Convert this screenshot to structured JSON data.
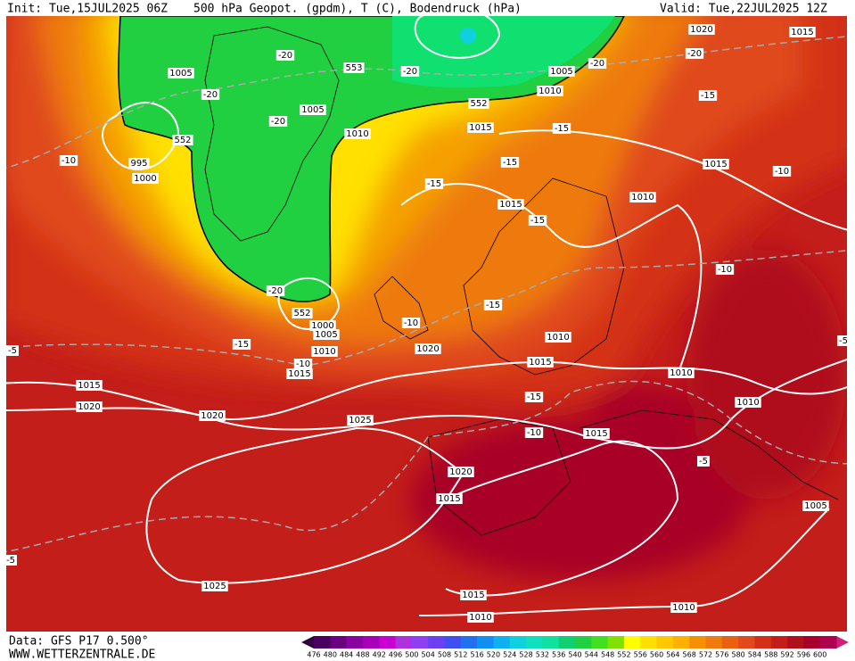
{
  "header": {
    "init": "Init: Tue,15JUL2025 06Z",
    "title": "500 hPa Geopot. (gpdm), T (C), Bodendruck (hPa)",
    "valid": "Valid: Tue,22JUL2025 12Z"
  },
  "footer": {
    "data": "Data: GFS P17 0.500°",
    "site": "WWW.WETTERZENTRALE.DE"
  },
  "colorbar": {
    "ticks": [
      476,
      480,
      484,
      488,
      492,
      496,
      500,
      504,
      508,
      512,
      516,
      520,
      524,
      528,
      532,
      536,
      540,
      544,
      548,
      552,
      556,
      560,
      564,
      568,
      572,
      576,
      580,
      584,
      588,
      592,
      596,
      600
    ],
    "colors": [
      "#4a0060",
      "#6a0080",
      "#8a00a0",
      "#a800b8",
      "#c800d0",
      "#b030e0",
      "#9040f0",
      "#6a40f0",
      "#4050f0",
      "#2070f0",
      "#1090f0",
      "#10b0f0",
      "#10d0e0",
      "#10e0c0",
      "#10e0a0",
      "#10d070",
      "#20d040",
      "#40e020",
      "#80e000",
      "#ffff00",
      "#ffe000",
      "#ffc800",
      "#ffb000",
      "#f59000",
      "#ee7a10",
      "#e86010",
      "#e04a1c",
      "#d43018",
      "#c41e1a",
      "#b0101c",
      "#a80028",
      "#b00050"
    ],
    "arrow_left": "#300040",
    "arrow_right": "#d0207a"
  },
  "contour_labels": [
    "1005",
    "-20",
    "-20",
    "553",
    "-20",
    "1005",
    "-20",
    "1020",
    "1015",
    "-20",
    "-15",
    "552",
    "1010",
    "1005",
    "-20",
    "1010",
    "1015",
    "-15",
    "552",
    "995",
    "1000",
    "-10",
    "-15",
    "-15",
    "1015",
    "-10",
    "1015",
    "-15",
    "1010",
    "-10",
    "-20",
    "552",
    "1000",
    "1005",
    "-15",
    "-10",
    "1010",
    "-15",
    "1020",
    "1010",
    "-10",
    "1015",
    "1015",
    "1010",
    "-15",
    "-5",
    "-5",
    "1015",
    "1020",
    "1020",
    "1010",
    "1025",
    "-10",
    "1015",
    "-5",
    "1020",
    "1015",
    "1005",
    "-5",
    "1025",
    "1015",
    "1010",
    "1010"
  ]
}
